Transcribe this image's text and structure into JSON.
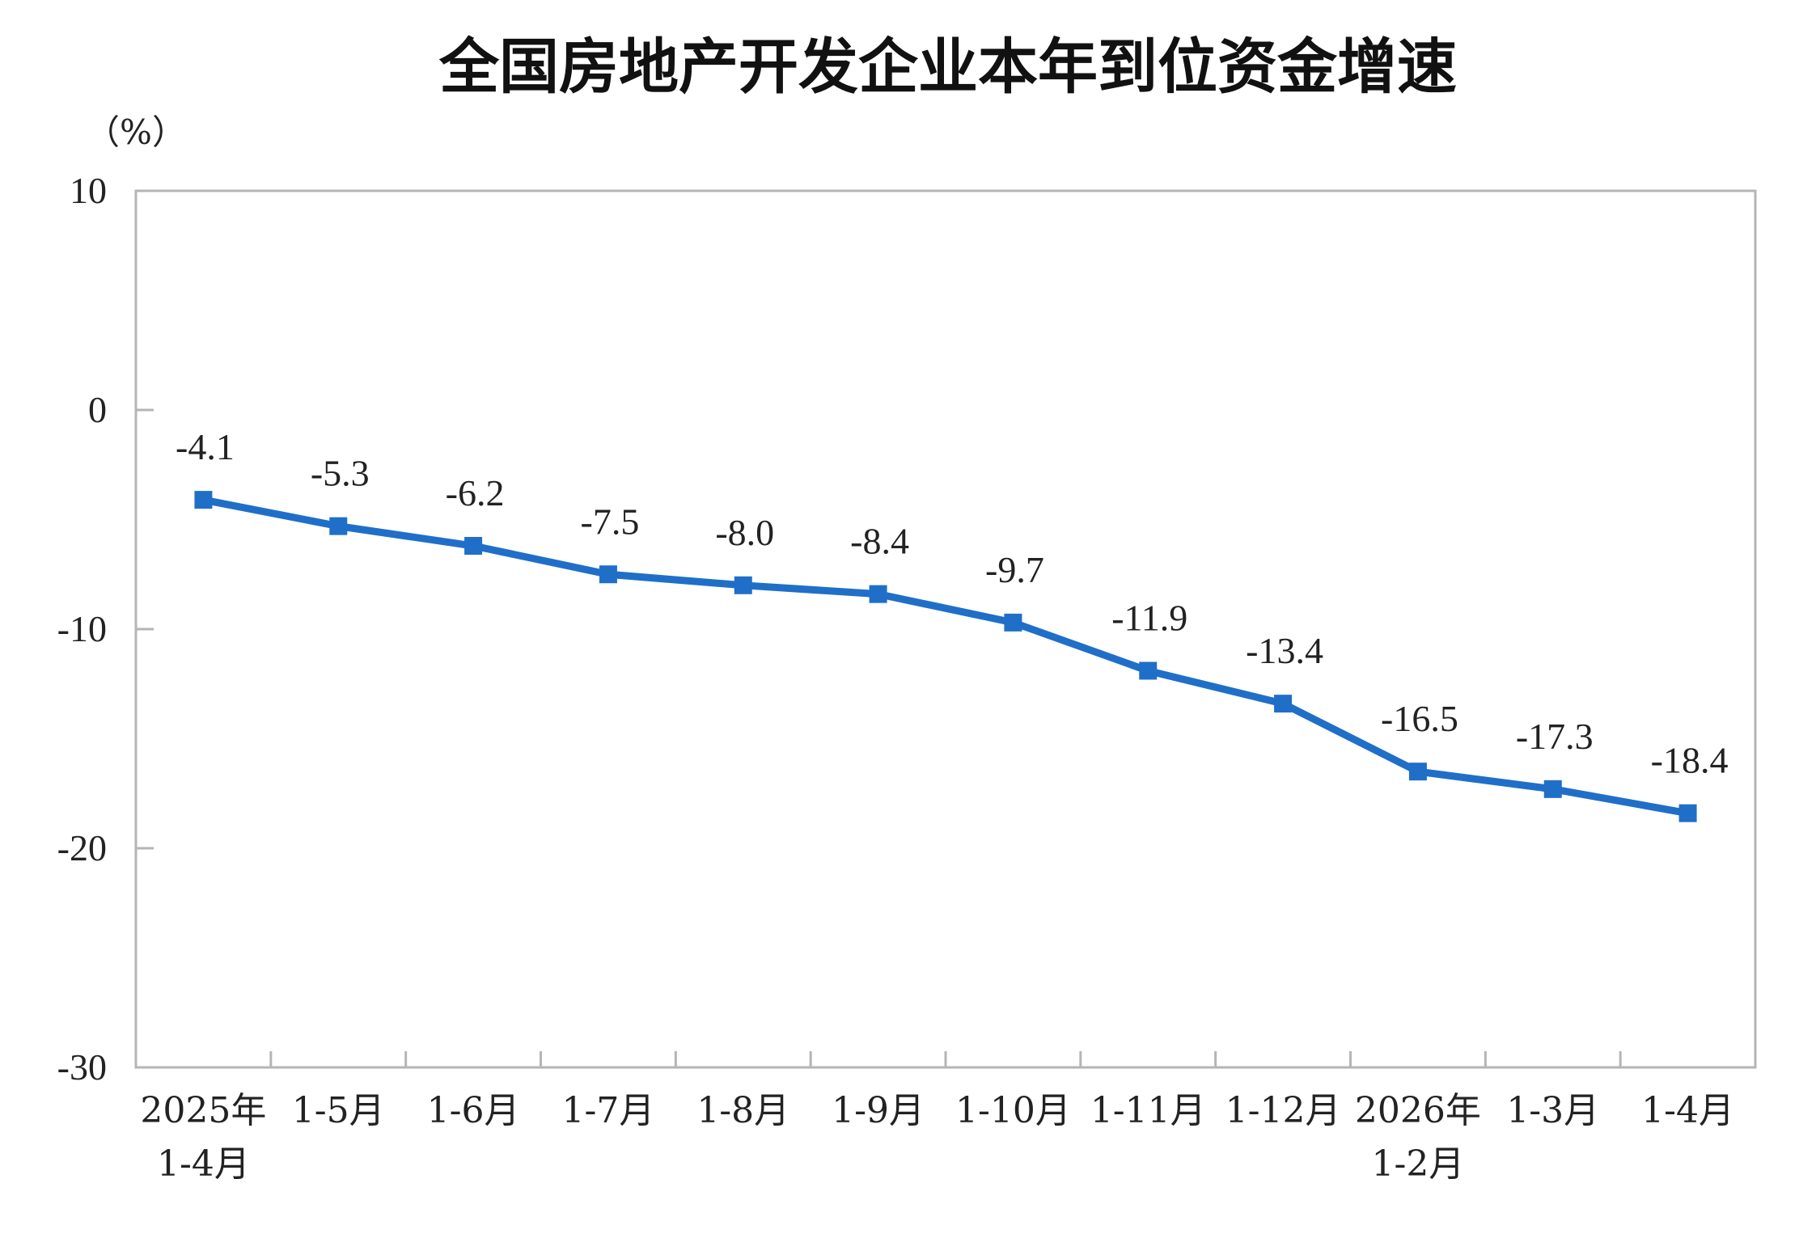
{
  "chart_data": {
    "type": "line",
    "title": "全国房地产开发企业本年到位资金增速",
    "unit_label": "（%）",
    "categories": [
      [
        "2025年",
        "1-4月"
      ],
      [
        "1-5月"
      ],
      [
        "1-6月"
      ],
      [
        "1-7月"
      ],
      [
        "1-8月"
      ],
      [
        "1-9月"
      ],
      [
        "1-10月"
      ],
      [
        "1-11月"
      ],
      [
        "1-12月"
      ],
      [
        "2026年",
        "1-2月"
      ],
      [
        "1-3月"
      ],
      [
        "1-4月"
      ]
    ],
    "series": [
      {
        "values": [
          -4.1,
          -5.3,
          -6.2,
          -7.5,
          -8.0,
          -8.4,
          -9.7,
          -11.9,
          -13.4,
          -16.5,
          -17.3,
          -18.4
        ],
        "data_labels": [
          "-4.1",
          "-5.3",
          "-6.2",
          "-7.5",
          "-8.0",
          "-8.4",
          "-9.7",
          "-11.9",
          "-13.4",
          "-16.5",
          "-17.3",
          "-18.4"
        ],
        "color": "#1f6fc8",
        "marker": "square"
      }
    ],
    "ylim": [
      -30,
      10
    ],
    "yticks": [
      10,
      0,
      -10,
      -20,
      -30
    ],
    "ytick_labels": [
      "10",
      "0",
      "-10",
      "-20",
      "-30"
    ],
    "grid": false,
    "legend": "none"
  }
}
